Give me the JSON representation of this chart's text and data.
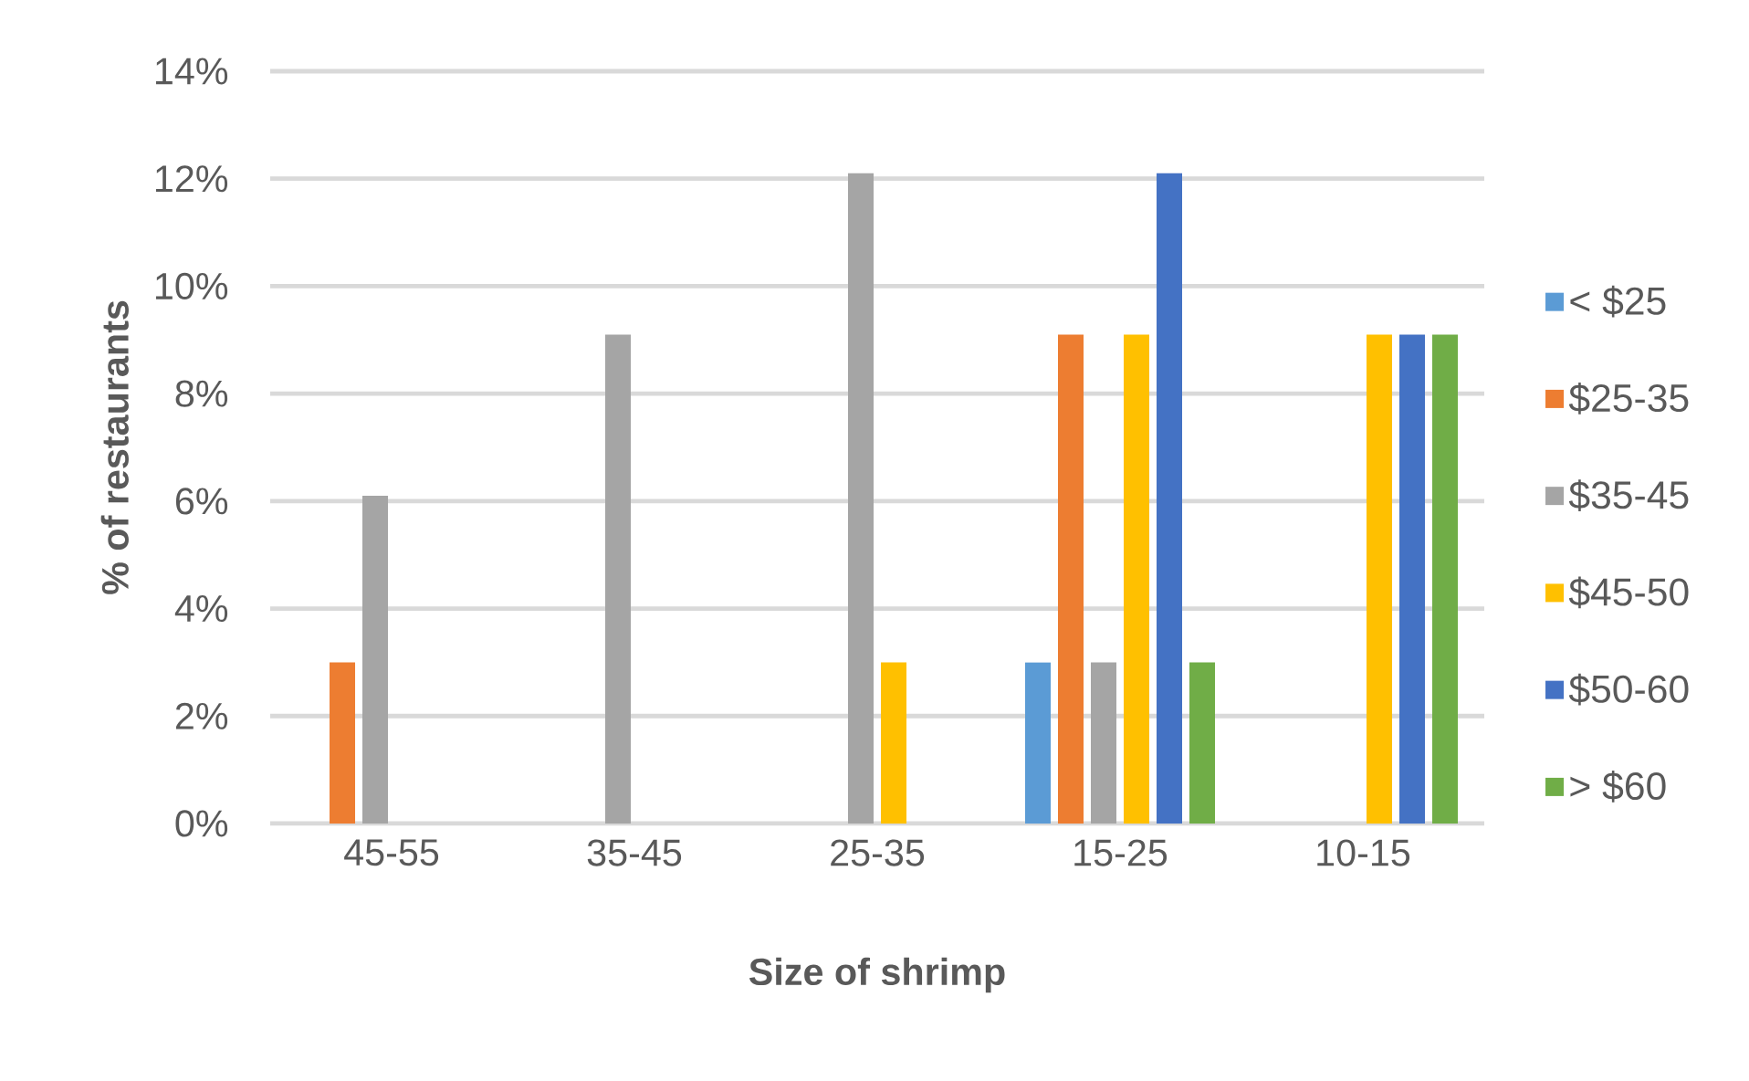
{
  "chart_data": {
    "type": "bar",
    "xlabel": "Size of shrimp",
    "ylabel": "% of restaurants",
    "categories": [
      "45-55",
      "35-45",
      "25-35",
      "15-25",
      "10-15"
    ],
    "series": [
      {
        "name": "< $25",
        "color": "#5b9bd5",
        "values": [
          null,
          null,
          null,
          3.0,
          null
        ]
      },
      {
        "name": "$25-35",
        "color": "#ed7d31",
        "values": [
          3.0,
          null,
          null,
          9.1,
          null
        ]
      },
      {
        "name": "$35-45",
        "color": "#a5a5a5",
        "values": [
          6.1,
          9.1,
          12.1,
          3.0,
          null
        ]
      },
      {
        "name": "$45-50",
        "color": "#ffc000",
        "values": [
          null,
          null,
          3.0,
          9.1,
          9.1
        ]
      },
      {
        "name": "$50-60",
        "color": "#4472c4",
        "values": [
          null,
          null,
          null,
          12.1,
          9.1
        ]
      },
      {
        "name": "> $60",
        "color": "#70ad47",
        "values": [
          null,
          null,
          null,
          3.0,
          9.1
        ]
      }
    ],
    "ylim": [
      0,
      14
    ],
    "yticks": [
      {
        "value": 0,
        "label": "0%"
      },
      {
        "value": 2,
        "label": "2%"
      },
      {
        "value": 4,
        "label": "4%"
      },
      {
        "value": 6,
        "label": "6%"
      },
      {
        "value": 8,
        "label": "8%"
      },
      {
        "value": 10,
        "label": "10%"
      },
      {
        "value": 12,
        "label": "12%"
      },
      {
        "value": 14,
        "label": "14%"
      }
    ],
    "grid": "y",
    "legend": "right"
  }
}
